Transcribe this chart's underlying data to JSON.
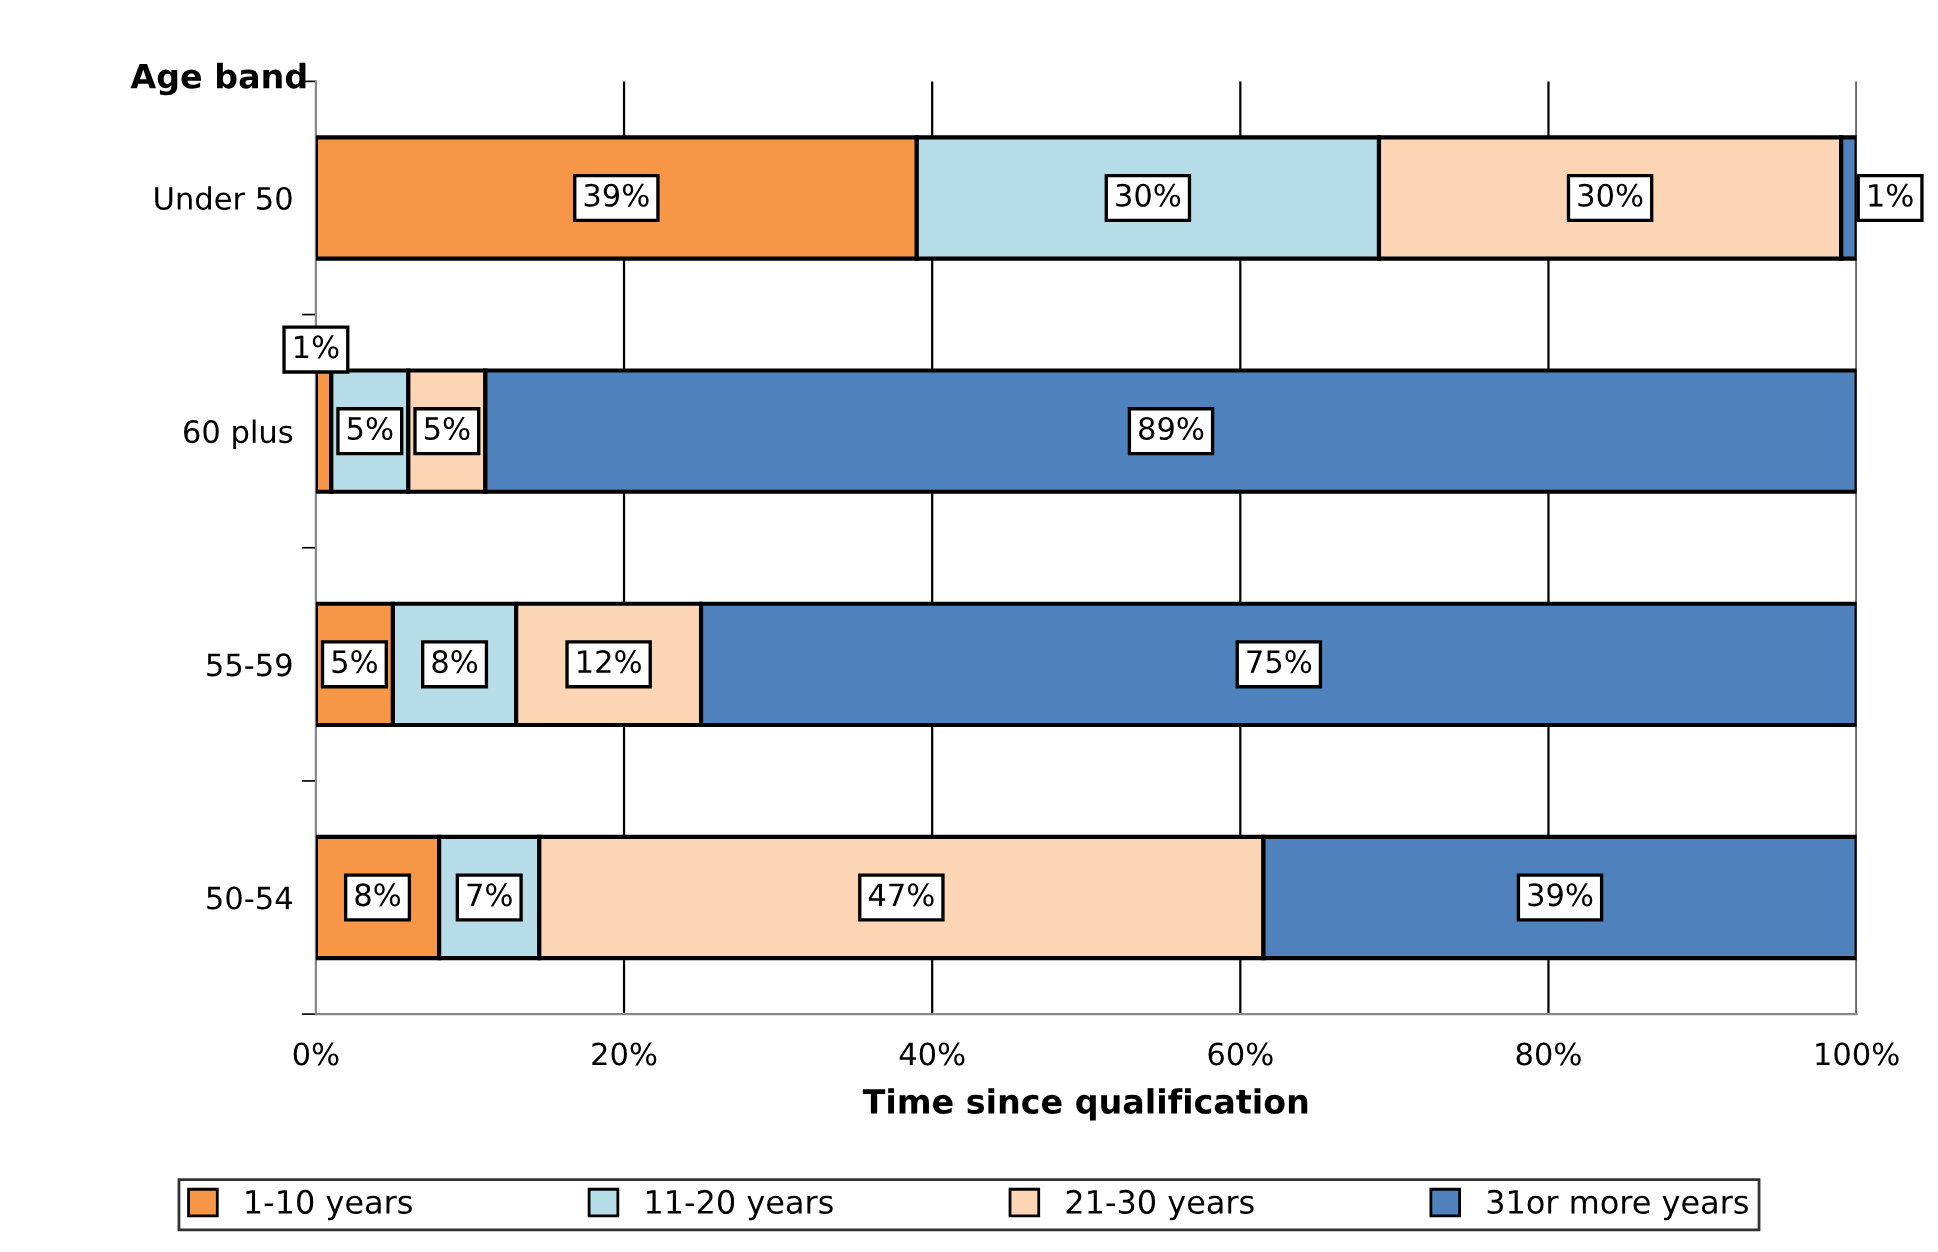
{
  "chart_data": {
    "type": "bar",
    "orientation": "horizontal",
    "stacked": true,
    "ylabel": "Age band",
    "xlabel": "Time since qualification",
    "categories": [
      "Under 50",
      "60 plus",
      "55-59",
      "50-54"
    ],
    "series": [
      {
        "name": "1-10 years",
        "color": "#f79646",
        "values": [
          39,
          1,
          5,
          8
        ],
        "value_labels": [
          "39%",
          "1%",
          "5%",
          "8%"
        ]
      },
      {
        "name": "11-20 years",
        "color": "#b7dde8",
        "values": [
          30,
          5,
          8,
          6.5
        ],
        "value_labels": [
          "30%",
          "5%",
          "8%",
          "7%"
        ]
      },
      {
        "name": "21-30 years",
        "color": "#fcd5b4",
        "values": [
          30,
          5,
          12,
          47
        ],
        "value_labels": [
          "30%",
          "5%",
          "12%",
          "47%"
        ]
      },
      {
        "name": "31or more years",
        "color": "#4f81bd",
        "values": [
          1,
          89,
          75,
          38.5
        ],
        "value_labels": [
          "1%",
          "89%",
          "75%",
          "39%"
        ]
      }
    ],
    "xlim": [
      0,
      100
    ],
    "xticks": [
      {
        "value": 0,
        "label": "0%"
      },
      {
        "value": 20,
        "label": "20%"
      },
      {
        "value": 40,
        "label": "40%"
      },
      {
        "value": 60,
        "label": "60%"
      },
      {
        "value": 80,
        "label": "80%"
      },
      {
        "value": 100,
        "label": "100%"
      }
    ],
    "grid": "x",
    "legend": "bottom"
  }
}
